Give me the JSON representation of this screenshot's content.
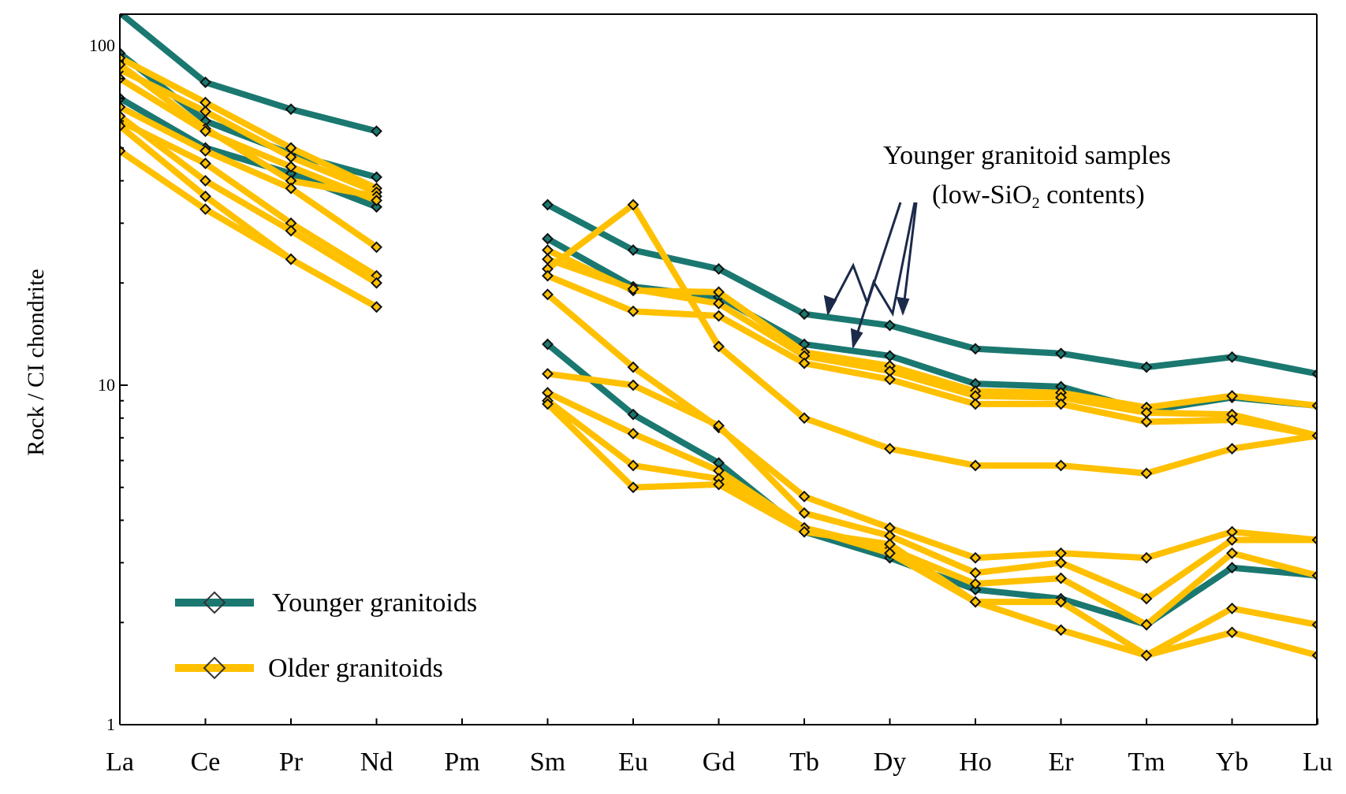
{
  "chart_data": {
    "type": "line",
    "ylabel": "Rock / CI chondrite",
    "yscale": "log",
    "ylim": [
      1,
      100
    ],
    "y_ticks": [
      "1",
      "10",
      "100"
    ],
    "categories": [
      "La",
      "Ce",
      "Pr",
      "Nd",
      "Pm",
      "Sm",
      "Eu",
      "Gd",
      "Tb",
      "Dy",
      "Ho",
      "Er",
      "Tm",
      "Yb",
      "Lu"
    ],
    "legend": [
      {
        "label": "Younger granitoids",
        "group": "younger"
      },
      {
        "label": "Older granitoids",
        "group": "older"
      }
    ],
    "annotation": {
      "line1": "Younger granitoid samples",
      "line2_pre": "(low-SiO",
      "line2_sub": "2",
      "line2_post": " contents)"
    },
    "colors": {
      "younger": "#1a7870",
      "older": "#ffc000",
      "arrow": "#1c2a4a"
    },
    "series": [
      {
        "group": "younger",
        "values": [
          125,
          78,
          65,
          56,
          null,
          34,
          25,
          22,
          16.2,
          15,
          12.8,
          12.4,
          11.3,
          12.1,
          10.8
        ]
      },
      {
        "group": "younger",
        "values": [
          95,
          60,
          48,
          41,
          null,
          27,
          19.5,
          18.2,
          13.2,
          12.2,
          10.1,
          9.9,
          8.4,
          9.2,
          8.7
        ]
      },
      {
        "group": "younger",
        "values": [
          70,
          50,
          42,
          33.5,
          null,
          13.2,
          8.2,
          5.9,
          3.7,
          3.1,
          2.5,
          2.35,
          1.97,
          2.9,
          2.75
        ]
      },
      {
        "group": "older",
        "values": [
          92,
          68,
          50,
          38,
          null,
          25,
          19,
          18.8,
          12.5,
          11.4,
          9.6,
          9.5,
          8.6,
          9.3,
          8.7
        ]
      },
      {
        "group": "older",
        "values": [
          85,
          64,
          47,
          37,
          null,
          23.5,
          19.2,
          17.4,
          12.2,
          11,
          9.3,
          9.2,
          8.3,
          8.2,
          7.1
        ]
      },
      {
        "group": "older",
        "values": [
          88,
          57,
          40,
          36,
          null,
          22,
          34,
          13,
          8,
          6.5,
          5.8,
          5.8,
          5.5,
          6.5,
          7.1
        ]
      },
      {
        "group": "older",
        "values": [
          80,
          56,
          44,
          35,
          null,
          21,
          16.5,
          16,
          11.6,
          10.4,
          8.8,
          8.8,
          7.8,
          7.9,
          7.1
        ]
      },
      {
        "group": "older",
        "values": [
          66,
          49,
          38,
          25.5,
          null,
          18.5,
          11.3,
          7.5,
          4.7,
          3.8,
          3.1,
          3.2,
          3.1,
          3.7,
          3.5
        ]
      },
      {
        "group": "older",
        "values": [
          60,
          45,
          30,
          21,
          null,
          10.8,
          10,
          7.6,
          4.2,
          3.6,
          2.8,
          3.0,
          2.35,
          3.5,
          3.5
        ]
      },
      {
        "group": "older",
        "values": [
          62,
          40,
          28.5,
          20,
          null,
          9.5,
          7.2,
          5.6,
          3.8,
          3.3,
          2.6,
          2.7,
          1.97,
          3.2,
          2.75
        ]
      },
      {
        "group": "older",
        "values": [
          58,
          36,
          23.5,
          17,
          null,
          9.0,
          5.8,
          5.3,
          3.8,
          3.2,
          2.3,
          1.9,
          1.6,
          2.2,
          1.97
        ]
      },
      {
        "group": "older",
        "values": [
          49,
          33,
          23.5,
          17,
          null,
          8.8,
          5.0,
          5.1,
          3.7,
          3.4,
          2.3,
          2.3,
          1.6,
          1.87,
          1.6
        ]
      }
    ]
  }
}
